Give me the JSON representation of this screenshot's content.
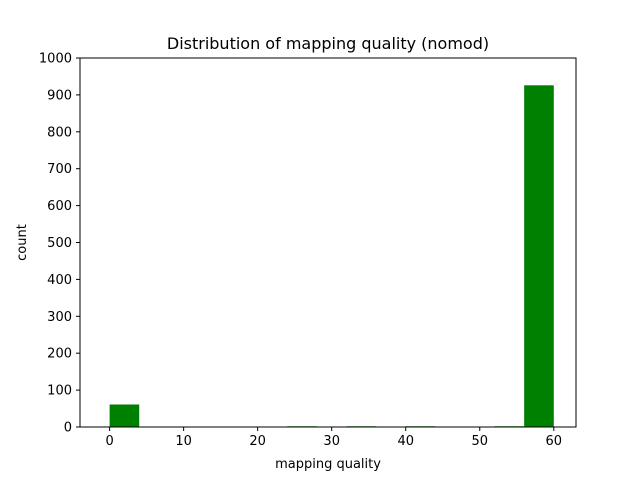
{
  "chart_data": {
    "type": "bar",
    "title": "Distribution of mapping quality (nomod)",
    "xlabel": "mapping quality",
    "ylabel": "count",
    "xlim": [
      -4,
      63
    ],
    "ylim": [
      0,
      1000
    ],
    "x_ticks": [
      0,
      10,
      20,
      30,
      40,
      50,
      60
    ],
    "y_ticks": [
      0,
      100,
      200,
      300,
      400,
      500,
      600,
      700,
      800,
      900,
      1000
    ],
    "grid": false,
    "color": "#008000",
    "bins": [
      {
        "start": 0,
        "end": 4,
        "value": 61
      },
      {
        "start": 4,
        "end": 8,
        "value": 0
      },
      {
        "start": 8,
        "end": 12,
        "value": 0
      },
      {
        "start": 12,
        "end": 16,
        "value": 0
      },
      {
        "start": 16,
        "end": 20,
        "value": 0
      },
      {
        "start": 20,
        "end": 24,
        "value": 0
      },
      {
        "start": 24,
        "end": 28,
        "value": 2
      },
      {
        "start": 28,
        "end": 32,
        "value": 0
      },
      {
        "start": 32,
        "end": 36,
        "value": 2
      },
      {
        "start": 36,
        "end": 40,
        "value": 0
      },
      {
        "start": 40,
        "end": 44,
        "value": 2
      },
      {
        "start": 44,
        "end": 48,
        "value": 0
      },
      {
        "start": 48,
        "end": 52,
        "value": 0
      },
      {
        "start": 52,
        "end": 56,
        "value": 2
      },
      {
        "start": 56,
        "end": 60,
        "value": 926
      }
    ]
  }
}
